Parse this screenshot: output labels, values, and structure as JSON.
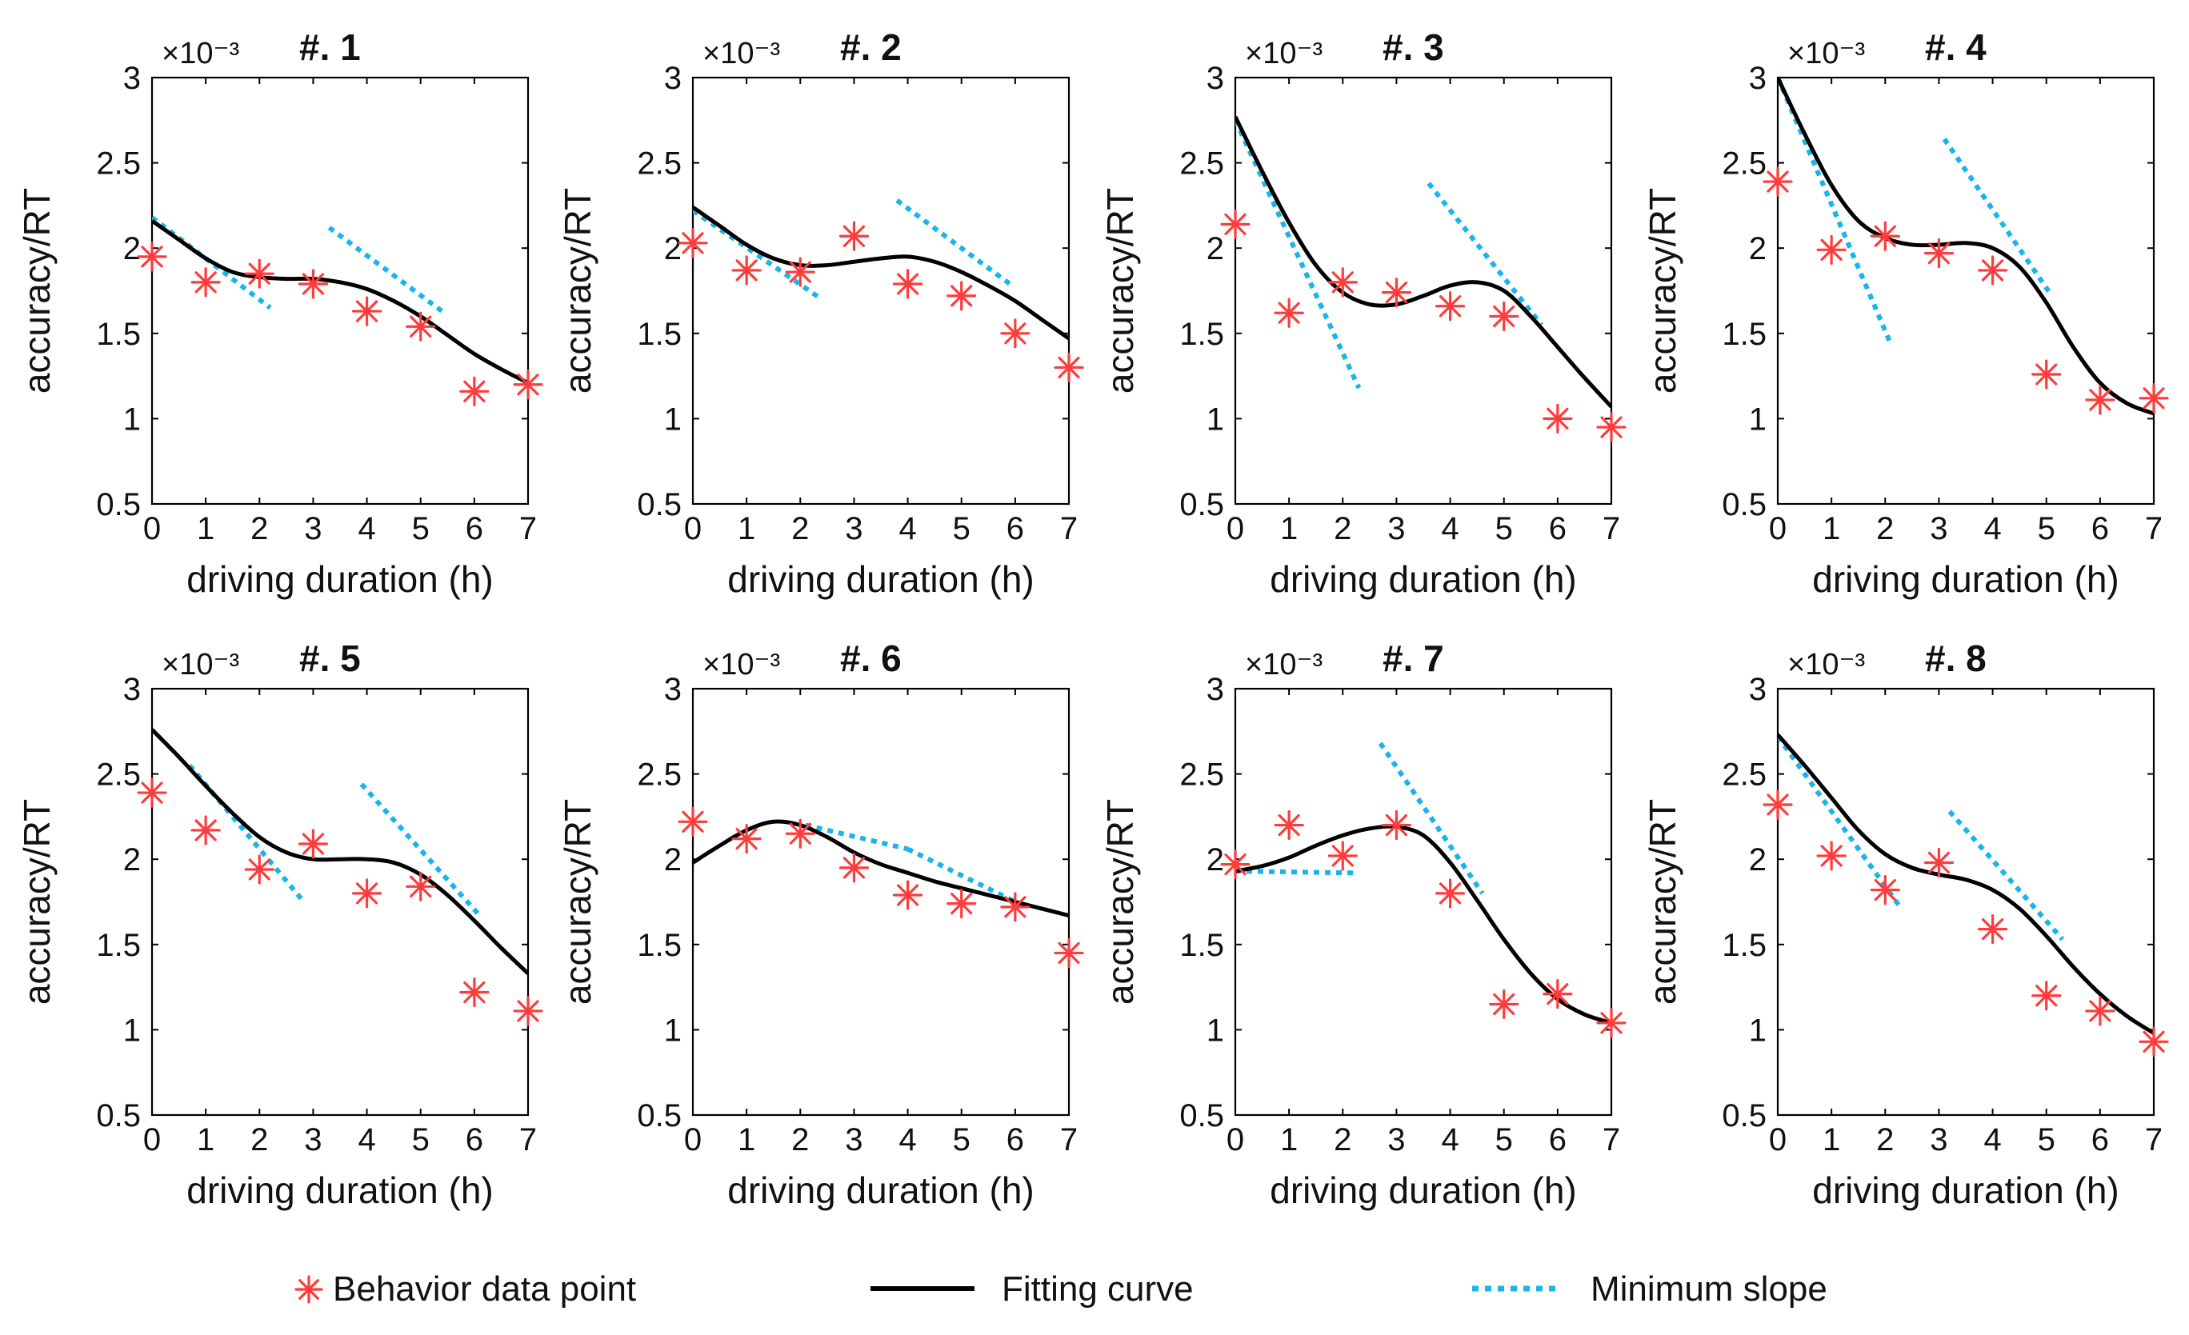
{
  "colors": {
    "points": "#ff3b3b",
    "curve": "#000000",
    "slope": "#19b4ea",
    "axes": "#000000"
  },
  "legend": {
    "items": [
      {
        "label": "Behavior data point",
        "kind": "points"
      },
      {
        "label": "Fitting curve",
        "kind": "curve"
      },
      {
        "label": "Minimum slope",
        "kind": "slope"
      }
    ]
  },
  "chart_data": [
    {
      "type": "scatter",
      "title": "#. 1",
      "exponent_label": "×10⁻³",
      "xlabel": "driving duration (h)",
      "ylabel": "accuracy/RT",
      "xlim": [
        0,
        7
      ],
      "ylim": [
        0.5,
        3
      ],
      "xticks": [
        "0",
        "1",
        "2",
        "3",
        "4",
        "5",
        "6",
        "7"
      ],
      "yticks": [
        "0.5",
        "1",
        "1.5",
        "2",
        "2.5",
        "3"
      ],
      "points": {
        "x": [
          0,
          1,
          2,
          3,
          4,
          5,
          6,
          7
        ],
        "y": [
          1.95,
          1.8,
          1.85,
          1.79,
          1.63,
          1.54,
          1.16,
          1.2
        ]
      },
      "curve": {
        "x": [
          0,
          0.5,
          1,
          1.5,
          2,
          2.5,
          3,
          3.5,
          4,
          4.5,
          5,
          5.5,
          6,
          6.5,
          7
        ],
        "y": [
          2.16,
          2.05,
          1.94,
          1.86,
          1.83,
          1.82,
          1.82,
          1.8,
          1.76,
          1.69,
          1.6,
          1.49,
          1.38,
          1.29,
          1.21
        ]
      },
      "slopes": [
        {
          "x": [
            0,
            2.2
          ],
          "y": [
            2.18,
            1.65
          ]
        },
        {
          "x": [
            3.3,
            5.4
          ],
          "y": [
            2.12,
            1.63
          ]
        }
      ]
    },
    {
      "type": "scatter",
      "title": "#. 2",
      "exponent_label": "×10⁻³",
      "xlabel": "driving duration (h)",
      "ylabel": "accuracy/RT",
      "xlim": [
        0,
        7
      ],
      "ylim": [
        0.5,
        3
      ],
      "xticks": [
        "0",
        "1",
        "2",
        "3",
        "4",
        "5",
        "6",
        "7"
      ],
      "yticks": [
        "0.5",
        "1",
        "1.5",
        "2",
        "2.5",
        "3"
      ],
      "points": {
        "x": [
          0,
          1,
          2,
          3,
          4,
          5,
          6,
          7
        ],
        "y": [
          2.03,
          1.87,
          1.86,
          2.07,
          1.79,
          1.72,
          1.5,
          1.3
        ]
      },
      "curve": {
        "x": [
          0,
          0.5,
          1,
          1.5,
          2,
          2.5,
          3,
          3.5,
          4,
          4.5,
          5,
          5.5,
          6,
          6.5,
          7
        ],
        "y": [
          2.24,
          2.13,
          2.02,
          1.94,
          1.9,
          1.9,
          1.92,
          1.94,
          1.95,
          1.92,
          1.86,
          1.78,
          1.69,
          1.58,
          1.47
        ]
      },
      "slopes": [
        {
          "x": [
            0,
            2.4
          ],
          "y": [
            2.22,
            1.7
          ]
        },
        {
          "x": [
            3.8,
            5.9
          ],
          "y": [
            2.28,
            1.79
          ]
        }
      ]
    },
    {
      "type": "scatter",
      "title": "#. 3",
      "exponent_label": "×10⁻³",
      "xlabel": "driving duration (h)",
      "ylabel": "accuracy/RT",
      "xlim": [
        0,
        7
      ],
      "ylim": [
        0.5,
        3
      ],
      "xticks": [
        "0",
        "1",
        "2",
        "3",
        "4",
        "5",
        "6",
        "7"
      ],
      "yticks": [
        "0.5",
        "1",
        "1.5",
        "2",
        "2.5",
        "3"
      ],
      "points": {
        "x": [
          0,
          1,
          2,
          3,
          4,
          5,
          6,
          7
        ],
        "y": [
          2.14,
          1.62,
          1.8,
          1.74,
          1.66,
          1.6,
          1.0,
          0.95
        ]
      },
      "curve": {
        "x": [
          0,
          0.5,
          1,
          1.5,
          2,
          2.5,
          3,
          3.5,
          4,
          4.5,
          5,
          5.5,
          6,
          6.5,
          7
        ],
        "y": [
          2.77,
          2.45,
          2.15,
          1.9,
          1.74,
          1.67,
          1.67,
          1.72,
          1.78,
          1.8,
          1.75,
          1.6,
          1.42,
          1.24,
          1.07
        ]
      },
      "slopes": [
        {
          "x": [
            0,
            2.3
          ],
          "y": [
            2.75,
            1.18
          ]
        },
        {
          "x": [
            3.6,
            5.7
          ],
          "y": [
            2.38,
            1.55
          ]
        }
      ]
    },
    {
      "type": "scatter",
      "title": "#. 4",
      "exponent_label": "×10⁻³",
      "xlabel": "driving duration (h)",
      "ylabel": "accuracy/RT",
      "xlim": [
        0,
        7
      ],
      "ylim": [
        0.5,
        3
      ],
      "xticks": [
        "0",
        "1",
        "2",
        "3",
        "4",
        "5",
        "6",
        "7"
      ],
      "yticks": [
        "0.5",
        "1",
        "1.5",
        "2",
        "2.5",
        "3"
      ],
      "points": {
        "x": [
          0,
          1,
          2,
          3,
          4,
          5,
          6,
          7
        ],
        "y": [
          2.39,
          1.99,
          2.07,
          1.97,
          1.87,
          1.26,
          1.11,
          1.12
        ]
      },
      "curve": {
        "x": [
          0,
          0.5,
          1,
          1.5,
          2,
          2.5,
          3,
          3.5,
          4,
          4.5,
          5,
          5.5,
          6,
          6.5,
          7
        ],
        "y": [
          3.0,
          2.67,
          2.37,
          2.16,
          2.06,
          2.02,
          2.02,
          2.03,
          2.0,
          1.89,
          1.68,
          1.42,
          1.21,
          1.09,
          1.03
        ]
      },
      "slopes": [
        {
          "x": [
            0,
            2.1
          ],
          "y": [
            3.0,
            1.44
          ]
        },
        {
          "x": [
            3.1,
            5.1
          ],
          "y": [
            2.64,
            1.72
          ]
        }
      ]
    },
    {
      "type": "scatter",
      "title": "#. 5",
      "exponent_label": "×10⁻³",
      "xlabel": "driving duration (h)",
      "ylabel": "accuracy/RT",
      "xlim": [
        0,
        7
      ],
      "ylim": [
        0.5,
        3
      ],
      "xticks": [
        "0",
        "1",
        "2",
        "3",
        "4",
        "5",
        "6",
        "7"
      ],
      "yticks": [
        "0.5",
        "1",
        "1.5",
        "2",
        "2.5",
        "3"
      ],
      "points": {
        "x": [
          0,
          1,
          2,
          3,
          4,
          5,
          6,
          7
        ],
        "y": [
          2.39,
          2.17,
          1.94,
          2.09,
          1.8,
          1.84,
          1.22,
          1.11
        ]
      },
      "curve": {
        "x": [
          0,
          0.5,
          1,
          1.5,
          2,
          2.5,
          3,
          3.5,
          4,
          4.5,
          5,
          5.5,
          6,
          6.5,
          7
        ],
        "y": [
          2.76,
          2.6,
          2.43,
          2.27,
          2.13,
          2.04,
          2.0,
          2.0,
          2.0,
          1.98,
          1.91,
          1.79,
          1.64,
          1.48,
          1.33
        ]
      },
      "slopes": [
        {
          "x": [
            0.7,
            2.8
          ],
          "y": [
            2.55,
            1.76
          ]
        },
        {
          "x": [
            3.9,
            6.1
          ],
          "y": [
            2.44,
            1.67
          ]
        }
      ]
    },
    {
      "type": "scatter",
      "title": "#. 6",
      "exponent_label": "×10⁻³",
      "xlabel": "driving duration (h)",
      "ylabel": "accuracy/RT",
      "xlim": [
        0,
        7
      ],
      "ylim": [
        0.5,
        3
      ],
      "xticks": [
        "0",
        "1",
        "2",
        "3",
        "4",
        "5",
        "6",
        "7"
      ],
      "yticks": [
        "0.5",
        "1",
        "1.5",
        "2",
        "2.5",
        "3"
      ],
      "points": {
        "x": [
          0,
          1,
          2,
          3,
          4,
          5,
          6,
          7
        ],
        "y": [
          2.22,
          2.12,
          2.15,
          1.95,
          1.79,
          1.74,
          1.72,
          1.45
        ]
      },
      "curve": {
        "x": [
          0,
          0.5,
          1,
          1.5,
          2,
          2.5,
          3,
          3.5,
          4,
          4.5,
          5,
          5.5,
          6,
          6.5,
          7
        ],
        "y": [
          1.98,
          2.08,
          2.17,
          2.22,
          2.2,
          2.13,
          2.04,
          1.97,
          1.92,
          1.87,
          1.83,
          1.79,
          1.75,
          1.71,
          1.67
        ]
      },
      "slopes": [
        {
          "x": [
            2.1,
            4.0
          ],
          "y": [
            2.2,
            2.06
          ]
        },
        {
          "x": [
            4.0,
            6.2
          ],
          "y": [
            2.06,
            1.72
          ]
        }
      ]
    },
    {
      "type": "scatter",
      "title": "#. 7",
      "exponent_label": "×10⁻³",
      "xlabel": "driving duration (h)",
      "ylabel": "accuracy/RT",
      "xlim": [
        0,
        7
      ],
      "ylim": [
        0.5,
        3
      ],
      "xticks": [
        "0",
        "1",
        "2",
        "3",
        "4",
        "5",
        "6",
        "7"
      ],
      "yticks": [
        "0.5",
        "1",
        "1.5",
        "2",
        "2.5",
        "3"
      ],
      "points": {
        "x": [
          0,
          1,
          2,
          3,
          4,
          5,
          6,
          7
        ],
        "y": [
          1.97,
          2.2,
          2.02,
          2.2,
          1.8,
          1.15,
          1.21,
          1.04
        ]
      },
      "curve": {
        "x": [
          0,
          0.5,
          1,
          1.5,
          2,
          2.5,
          3,
          3.5,
          4,
          4.5,
          5,
          5.5,
          6,
          6.5,
          7
        ],
        "y": [
          1.93,
          1.96,
          2.01,
          2.08,
          2.14,
          2.18,
          2.19,
          2.14,
          1.98,
          1.76,
          1.53,
          1.33,
          1.18,
          1.09,
          1.04
        ]
      },
      "slopes": [
        {
          "x": [
            0,
            2.2
          ],
          "y": [
            1.93,
            1.92
          ]
        },
        {
          "x": [
            2.7,
            4.6
          ],
          "y": [
            2.68,
            1.8
          ]
        }
      ]
    },
    {
      "type": "scatter",
      "title": "#. 8",
      "exponent_label": "×10⁻³",
      "xlabel": "driving duration (h)",
      "ylabel": "accuracy/RT",
      "xlim": [
        0,
        7
      ],
      "ylim": [
        0.5,
        3
      ],
      "xticks": [
        "0",
        "1",
        "2",
        "3",
        "4",
        "5",
        "6",
        "7"
      ],
      "yticks": [
        "0.5",
        "1",
        "1.5",
        "2",
        "2.5",
        "3"
      ],
      "points": {
        "x": [
          0,
          1,
          2,
          3,
          4,
          5,
          6,
          7
        ],
        "y": [
          2.32,
          2.02,
          1.82,
          1.98,
          1.59,
          1.2,
          1.11,
          0.93
        ]
      },
      "curve": {
        "x": [
          0,
          0.5,
          1,
          1.5,
          2,
          2.5,
          3,
          3.5,
          4,
          4.5,
          5,
          5.5,
          6,
          6.5,
          7
        ],
        "y": [
          2.73,
          2.55,
          2.36,
          2.17,
          2.03,
          1.95,
          1.91,
          1.88,
          1.82,
          1.71,
          1.55,
          1.37,
          1.21,
          1.08,
          0.98
        ]
      },
      "slopes": [
        {
          "x": [
            0,
            2.3
          ],
          "y": [
            2.72,
            1.71
          ]
        },
        {
          "x": [
            3.2,
            5.3
          ],
          "y": [
            2.28,
            1.53
          ]
        }
      ]
    }
  ]
}
